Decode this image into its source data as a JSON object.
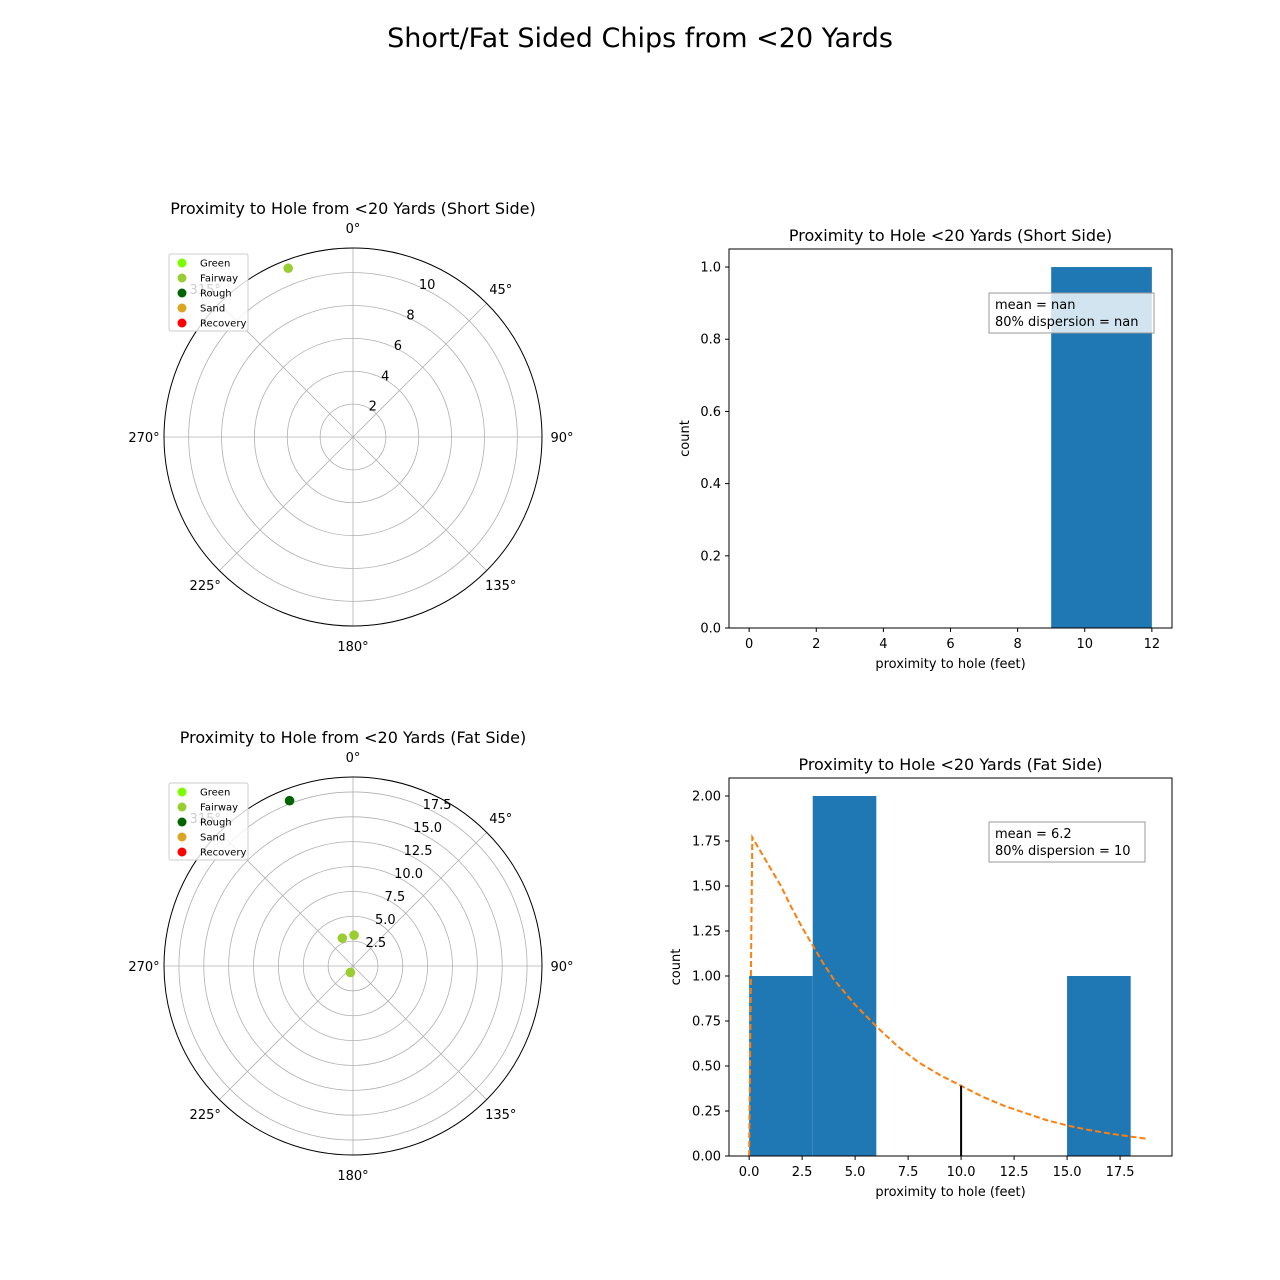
{
  "figure_title": "Short/Fat Sided Chips from <20 Yards",
  "chart_data": [
    {
      "type": "polar-scatter",
      "title": "Proximity to Hole from <20 Yards (Short Side)",
      "theta_direction": "clockwise",
      "theta_zero": "top",
      "theta_ticks": [
        "0°",
        "45°",
        "90°",
        "135°",
        "180°",
        "225°",
        "270°",
        "315°"
      ],
      "r_max": 11.5,
      "r_ticks": [
        2,
        4,
        6,
        8,
        10
      ],
      "r_tick_labels": [
        "2",
        "4",
        "6",
        "8",
        "10"
      ],
      "grid": true,
      "legend": {
        "placement": "top-left",
        "entries": [
          "Green",
          "Fairway",
          "Rough",
          "Sand",
          "Recovery"
        ]
      },
      "categories": {
        "Green": "#7CFC00",
        "Fairway": "#9ACD32",
        "Rough": "#006400",
        "Sand": "#DAA520",
        "Recovery": "#FF0000"
      },
      "points": [
        {
          "theta": 339,
          "r": 11.0,
          "lie": "Fairway"
        }
      ]
    },
    {
      "type": "histogram",
      "title": "Proximity to Hole <20 Yards (Short Side)",
      "xlabel": "proximity to hole (feet)",
      "ylabel": "count",
      "xlim": [
        -0.6,
        12.6
      ],
      "ylim": [
        0,
        1.05
      ],
      "xticks": [
        0,
        2,
        4,
        6,
        8,
        10,
        12
      ],
      "xtick_labels": [
        "0",
        "2",
        "4",
        "6",
        "8",
        "10",
        "12"
      ],
      "yticks": [
        0,
        0.2,
        0.4,
        0.6,
        0.8,
        1.0
      ],
      "ytick_labels": [
        "0.0",
        "0.2",
        "0.4",
        "0.6",
        "0.8",
        "1.0"
      ],
      "bins": [
        {
          "x0": 9,
          "x1": 12,
          "count": 1
        }
      ],
      "bar_color": "#1f77b4",
      "annotation": [
        "mean = nan",
        "80% dispersion = nan"
      ],
      "annotation_placement": "top-right"
    },
    {
      "type": "polar-scatter",
      "title": "Proximity to Hole from <20 Yards (Fat Side)",
      "theta_direction": "clockwise",
      "theta_zero": "top",
      "theta_ticks": [
        "0°",
        "45°",
        "90°",
        "135°",
        "180°",
        "225°",
        "270°",
        "315°"
      ],
      "r_max": 19.0,
      "r_ticks": [
        2.5,
        5.0,
        7.5,
        10.0,
        12.5,
        15.0,
        17.5
      ],
      "r_tick_labels": [
        "2.5",
        "5.0",
        "7.5",
        "10.0",
        "12.5",
        "15.0",
        "17.5"
      ],
      "grid": true,
      "legend": {
        "placement": "top-left",
        "entries": [
          "Green",
          "Fairway",
          "Rough",
          "Sand",
          "Recovery"
        ]
      },
      "categories": {
        "Green": "#7CFC00",
        "Fairway": "#9ACD32",
        "Rough": "#006400",
        "Sand": "#DAA520",
        "Recovery": "#FF0000"
      },
      "points": [
        {
          "theta": 339,
          "r": 17.8,
          "lie": "Rough"
        },
        {
          "theta": 2,
          "r": 3.1,
          "lie": "Fairway"
        },
        {
          "theta": 339,
          "r": 3.0,
          "lie": "Fairway"
        },
        {
          "theta": 202,
          "r": 0.7,
          "lie": "Fairway"
        }
      ]
    },
    {
      "type": "histogram",
      "title": "Proximity to Hole <20 Yards (Fat Side)",
      "xlabel": "proximity to hole (feet)",
      "ylabel": "count",
      "xlim": [
        -0.95,
        19.95
      ],
      "ylim": [
        0,
        2.1
      ],
      "xticks": [
        0,
        2.5,
        5,
        7.5,
        10,
        12.5,
        15,
        17.5
      ],
      "xtick_labels": [
        "0.0",
        "2.5",
        "5.0",
        "7.5",
        "10.0",
        "12.5",
        "15.0",
        "17.5"
      ],
      "yticks": [
        0,
        0.25,
        0.5,
        0.75,
        1.0,
        1.25,
        1.5,
        1.75,
        2.0
      ],
      "ytick_labels": [
        "0.00",
        "0.25",
        "0.50",
        "0.75",
        "1.00",
        "1.25",
        "1.50",
        "1.75",
        "2.00"
      ],
      "bins": [
        {
          "x0": 0,
          "x1": 3,
          "count": 1
        },
        {
          "x0": 3,
          "x1": 6,
          "count": 2
        },
        {
          "x0": 6,
          "x1": 9,
          "count": 0
        },
        {
          "x0": 9,
          "x1": 12,
          "count": 0
        },
        {
          "x0": 12,
          "x1": 15,
          "count": 0
        },
        {
          "x0": 15,
          "x1": 18,
          "count": 1
        }
      ],
      "bar_color": "#1f77b4",
      "fit_curve": {
        "color": "#ff7f0e",
        "style": "dashed",
        "points": [
          [
            0.0,
            0.0
          ],
          [
            0.15,
            1.77
          ],
          [
            0.5,
            1.7
          ],
          [
            1.0,
            1.6
          ],
          [
            1.5,
            1.5
          ],
          [
            2.0,
            1.38
          ],
          [
            2.5,
            1.27
          ],
          [
            3.0,
            1.17
          ],
          [
            3.5,
            1.07
          ],
          [
            4.0,
            0.98
          ],
          [
            5.0,
            0.84
          ],
          [
            6.0,
            0.72
          ],
          [
            7.0,
            0.61
          ],
          [
            8.0,
            0.52
          ],
          [
            9.0,
            0.45
          ],
          [
            10.0,
            0.39
          ],
          [
            11.0,
            0.33
          ],
          [
            12.0,
            0.28
          ],
          [
            13.0,
            0.24
          ],
          [
            14.0,
            0.2
          ],
          [
            15.0,
            0.17
          ],
          [
            16.0,
            0.145
          ],
          [
            17.0,
            0.125
          ],
          [
            18.0,
            0.108
          ],
          [
            18.8,
            0.095
          ]
        ]
      },
      "marker_line": {
        "x": 10,
        "y": 0.39,
        "color": "#000000"
      },
      "annotation": [
        "mean = 6.2",
        "80% dispersion = 10"
      ],
      "annotation_placement": "top-right"
    }
  ]
}
